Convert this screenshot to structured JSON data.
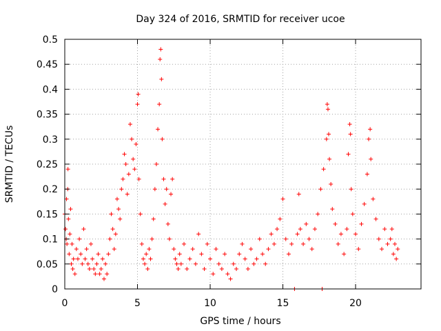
{
  "chart_data": {
    "type": "scatter",
    "title": "Day 324 of 2016, SRMTID for receiver ucoe",
    "xlabel": "GPS time / hours",
    "ylabel": "SRMTID / TECUs",
    "xlim": [
      0,
      24.5
    ],
    "ylim": [
      0,
      0.5
    ],
    "xticks": [
      0,
      5,
      10,
      15,
      20
    ],
    "xtick_labels": [
      "0",
      "5",
      "10",
      "15",
      "20"
    ],
    "yticks": [
      0,
      0.05,
      0.1,
      0.15,
      0.2,
      0.25,
      0.3,
      0.35,
      0.4,
      0.45,
      0.5
    ],
    "ytick_labels": [
      "0",
      "0.05",
      "0.1",
      "0.15",
      "0.2",
      "0.25",
      "0.3",
      "0.35",
      "0.4",
      "0.45",
      "0.5"
    ],
    "grid": true,
    "marker": "plus",
    "color": "#ff0000",
    "series": [
      {
        "name": "SRMTID",
        "points": [
          [
            0.0,
            0.15
          ],
          [
            0.05,
            0.12
          ],
          [
            0.1,
            0.1
          ],
          [
            0.12,
            0.18
          ],
          [
            0.15,
            0.09
          ],
          [
            0.2,
            0.2
          ],
          [
            0.22,
            0.24
          ],
          [
            0.25,
            0.14
          ],
          [
            0.3,
            0.07
          ],
          [
            0.35,
            0.11
          ],
          [
            0.4,
            0.16
          ],
          [
            0.45,
            0.05
          ],
          [
            0.5,
            0.09
          ],
          [
            0.55,
            0.04
          ],
          [
            0.6,
            0.06
          ],
          [
            0.7,
            0.03
          ],
          [
            0.8,
            0.08
          ],
          [
            0.9,
            0.06
          ],
          [
            1.0,
            0.1
          ],
          [
            1.1,
            0.07
          ],
          [
            1.2,
            0.05
          ],
          [
            1.3,
            0.12
          ],
          [
            1.4,
            0.06
          ],
          [
            1.5,
            0.08
          ],
          [
            1.6,
            0.05
          ],
          [
            1.7,
            0.04
          ],
          [
            1.8,
            0.09
          ],
          [
            1.9,
            0.06
          ],
          [
            2.0,
            0.04
          ],
          [
            2.1,
            0.03
          ],
          [
            2.2,
            0.05
          ],
          [
            2.3,
            0.07
          ],
          [
            2.4,
            0.03
          ],
          [
            2.5,
            0.04
          ],
          [
            2.6,
            0.06
          ],
          [
            2.7,
            0.02
          ],
          [
            2.8,
            0.05
          ],
          [
            2.9,
            0.03
          ],
          [
            3.0,
            0.07
          ],
          [
            3.1,
            0.1
          ],
          [
            3.2,
            0.15
          ],
          [
            3.3,
            0.12
          ],
          [
            3.4,
            0.08
          ],
          [
            3.5,
            0.11
          ],
          [
            3.6,
            0.18
          ],
          [
            3.7,
            0.16
          ],
          [
            3.8,
            0.14
          ],
          [
            3.9,
            0.2
          ],
          [
            4.0,
            0.22
          ],
          [
            4.1,
            0.27
          ],
          [
            4.2,
            0.25
          ],
          [
            4.3,
            0.19
          ],
          [
            4.4,
            0.23
          ],
          [
            4.5,
            0.33
          ],
          [
            4.6,
            0.3
          ],
          [
            4.7,
            0.26
          ],
          [
            4.8,
            0.24
          ],
          [
            4.9,
            0.29
          ],
          [
            5.0,
            0.37
          ],
          [
            5.05,
            0.39
          ],
          [
            5.1,
            0.22
          ],
          [
            5.2,
            0.15
          ],
          [
            5.3,
            0.09
          ],
          [
            5.4,
            0.06
          ],
          [
            5.5,
            0.05
          ],
          [
            5.6,
            0.07
          ],
          [
            5.7,
            0.04
          ],
          [
            5.8,
            0.08
          ],
          [
            5.9,
            0.06
          ],
          [
            6.0,
            0.1
          ],
          [
            6.1,
            0.14
          ],
          [
            6.2,
            0.2
          ],
          [
            6.3,
            0.25
          ],
          [
            6.4,
            0.32
          ],
          [
            6.5,
            0.37
          ],
          [
            6.55,
            0.46
          ],
          [
            6.6,
            0.48
          ],
          [
            6.65,
            0.42
          ],
          [
            6.7,
            0.3
          ],
          [
            6.8,
            0.22
          ],
          [
            6.9,
            0.17
          ],
          [
            7.0,
            0.2
          ],
          [
            7.1,
            0.13
          ],
          [
            7.2,
            0.1
          ],
          [
            7.3,
            0.19
          ],
          [
            7.4,
            0.22
          ],
          [
            7.5,
            0.08
          ],
          [
            7.6,
            0.06
          ],
          [
            7.7,
            0.05
          ],
          [
            7.8,
            0.04
          ],
          [
            7.9,
            0.07
          ],
          [
            8.0,
            0.05
          ],
          [
            8.2,
            0.09
          ],
          [
            8.4,
            0.04
          ],
          [
            8.6,
            0.06
          ],
          [
            8.8,
            0.08
          ],
          [
            9.0,
            0.05
          ],
          [
            9.2,
            0.11
          ],
          [
            9.4,
            0.07
          ],
          [
            9.6,
            0.04
          ],
          [
            9.8,
            0.09
          ],
          [
            10.0,
            0.06
          ],
          [
            10.2,
            0.03
          ],
          [
            10.4,
            0.08
          ],
          [
            10.6,
            0.05
          ],
          [
            10.8,
            0.04
          ],
          [
            11.0,
            0.07
          ],
          [
            11.2,
            0.03
          ],
          [
            11.4,
            0.02
          ],
          [
            11.6,
            0.05
          ],
          [
            11.8,
            0.04
          ],
          [
            12.0,
            0.07
          ],
          [
            12.2,
            0.09
          ],
          [
            12.4,
            0.06
          ],
          [
            12.6,
            0.04
          ],
          [
            12.8,
            0.08
          ],
          [
            13.0,
            0.05
          ],
          [
            13.2,
            0.06
          ],
          [
            13.4,
            0.1
          ],
          [
            13.6,
            0.07
          ],
          [
            13.8,
            0.05
          ],
          [
            14.0,
            0.08
          ],
          [
            14.2,
            0.11
          ],
          [
            14.4,
            0.09
          ],
          [
            14.6,
            0.12
          ],
          [
            14.8,
            0.14
          ],
          [
            15.0,
            0.18
          ],
          [
            15.2,
            0.1
          ],
          [
            15.4,
            0.07
          ],
          [
            15.6,
            0.09
          ],
          [
            15.8,
            0.0
          ],
          [
            16.0,
            0.11
          ],
          [
            16.1,
            0.19
          ],
          [
            16.2,
            0.12
          ],
          [
            16.4,
            0.09
          ],
          [
            16.6,
            0.13
          ],
          [
            16.8,
            0.1
          ],
          [
            17.0,
            0.08
          ],
          [
            17.2,
            0.12
          ],
          [
            17.4,
            0.15
          ],
          [
            17.6,
            0.2
          ],
          [
            17.7,
            0.0
          ],
          [
            17.8,
            0.24
          ],
          [
            18.0,
            0.3
          ],
          [
            18.05,
            0.37
          ],
          [
            18.1,
            0.36
          ],
          [
            18.15,
            0.31
          ],
          [
            18.2,
            0.26
          ],
          [
            18.3,
            0.21
          ],
          [
            18.4,
            0.16
          ],
          [
            18.6,
            0.13
          ],
          [
            18.8,
            0.09
          ],
          [
            19.0,
            0.11
          ],
          [
            19.2,
            0.07
          ],
          [
            19.4,
            0.12
          ],
          [
            19.5,
            0.27
          ],
          [
            19.6,
            0.33
          ],
          [
            19.65,
            0.31
          ],
          [
            19.7,
            0.2
          ],
          [
            19.8,
            0.15
          ],
          [
            20.0,
            0.11
          ],
          [
            20.2,
            0.08
          ],
          [
            20.4,
            0.13
          ],
          [
            20.6,
            0.17
          ],
          [
            20.8,
            0.23
          ],
          [
            20.9,
            0.3
          ],
          [
            21.0,
            0.32
          ],
          [
            21.05,
            0.26
          ],
          [
            21.2,
            0.18
          ],
          [
            21.4,
            0.14
          ],
          [
            21.6,
            0.1
          ],
          [
            21.8,
            0.08
          ],
          [
            22.0,
            0.12
          ],
          [
            22.2,
            0.09
          ],
          [
            22.4,
            0.1
          ],
          [
            22.5,
            0.12
          ],
          [
            22.6,
            0.07
          ],
          [
            22.7,
            0.09
          ],
          [
            22.8,
            0.06
          ],
          [
            22.9,
            0.08
          ]
        ]
      }
    ]
  }
}
